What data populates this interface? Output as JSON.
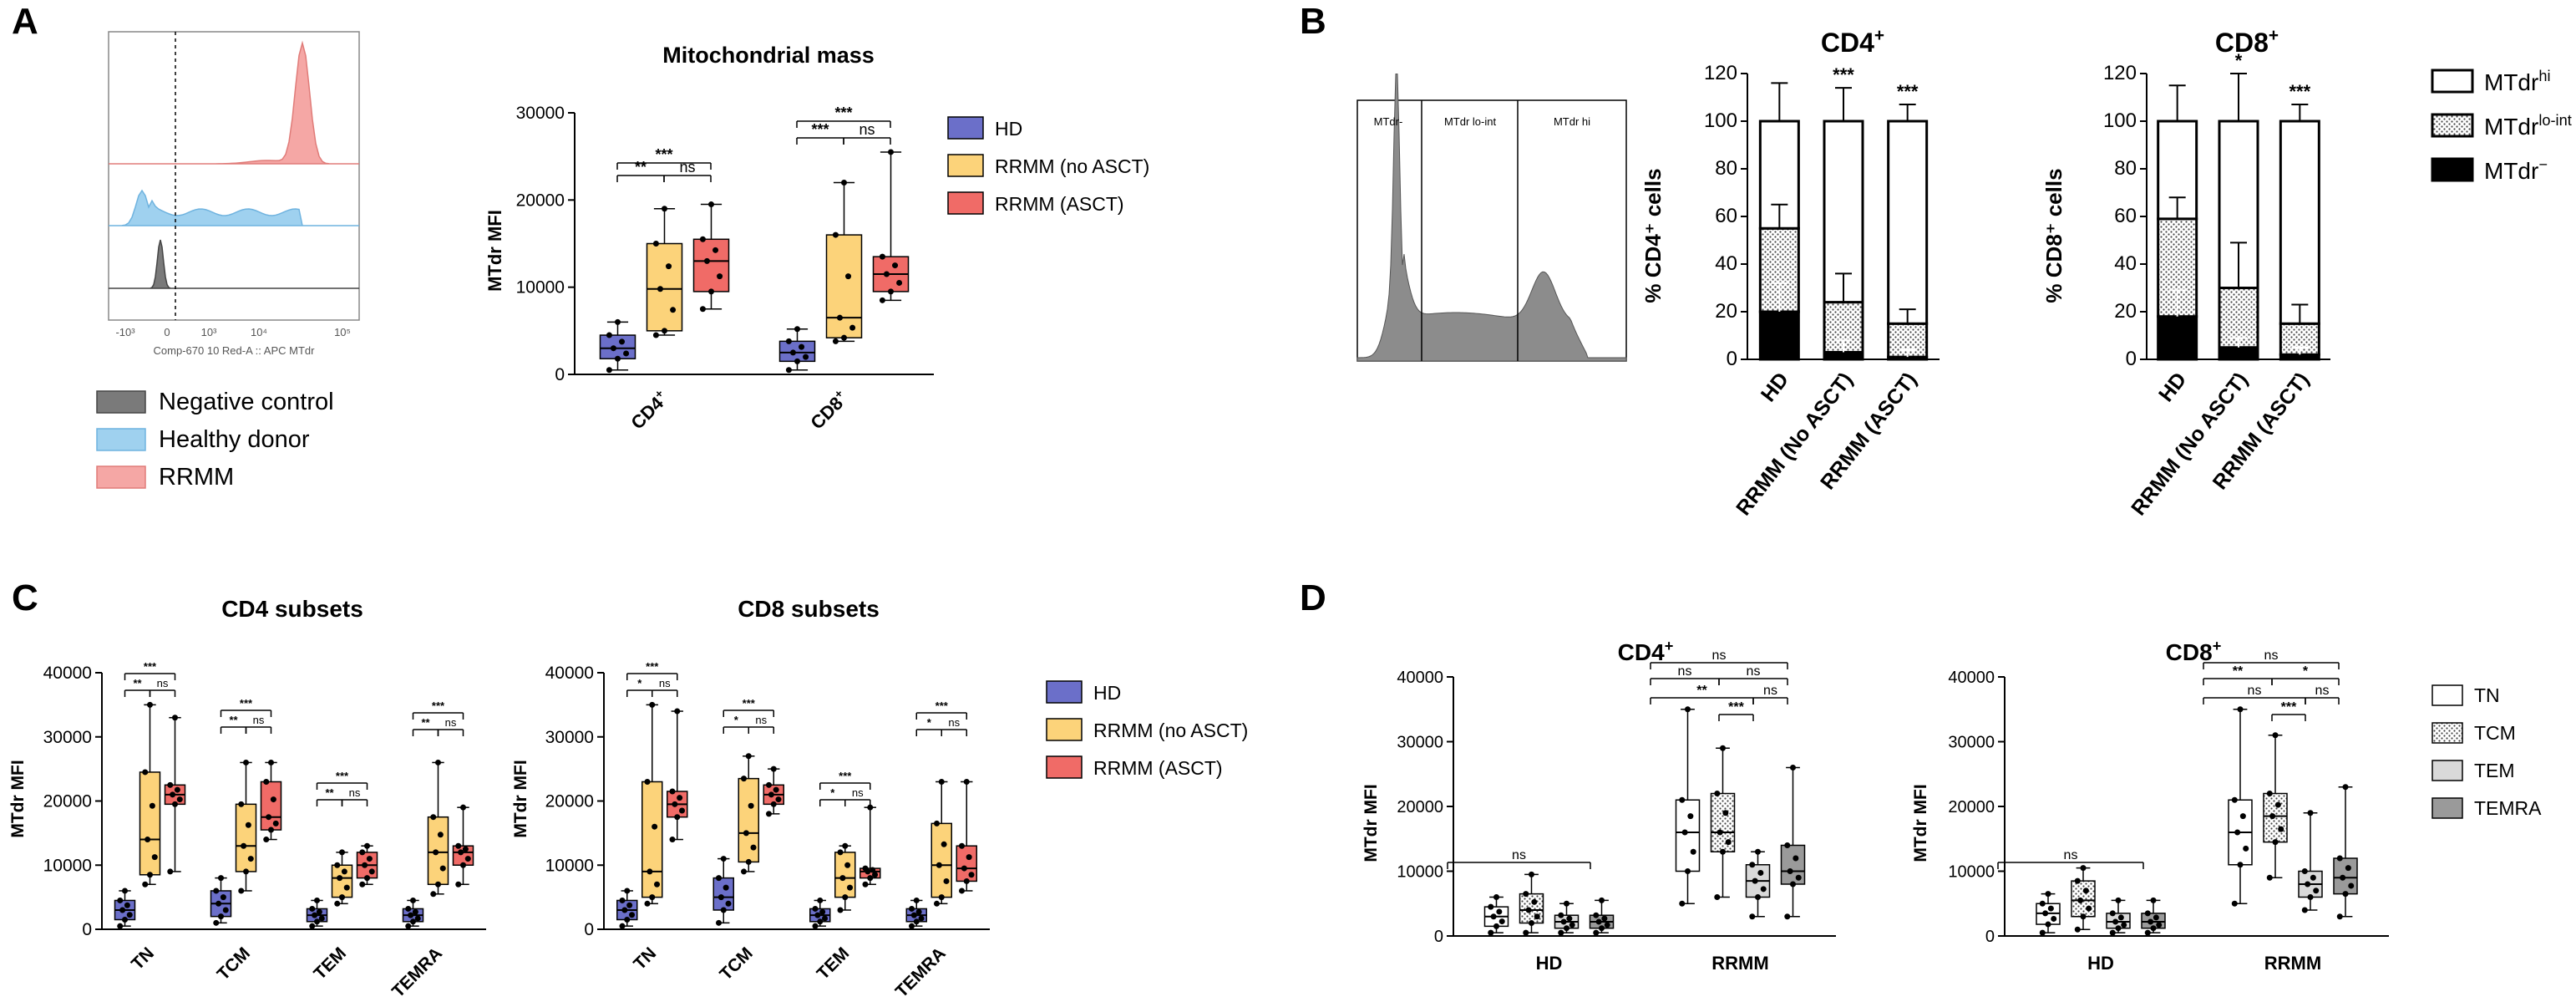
{
  "colors": {
    "hd": "#6b6fc9",
    "rrmm_no_asct": "#fcd37a",
    "rrmm_asct": "#f06b67",
    "flow_rrmm": "#f5a7a5",
    "flow_hd": "#9fd1ef",
    "flow_neg": "#7a7a7a",
    "gray_hist": "#8c8c8c",
    "tem_fill": "#d9d9d9",
    "temra_fill": "#9a9a9a"
  },
  "panel_labels": [
    "A",
    "B",
    "C",
    "D"
  ],
  "panel_a": {
    "flow": {
      "axis_label": "Comp-670 10 Red-A :: APC MTdr",
      "ticks": [
        "-10³",
        "0",
        "10³",
        "10⁴",
        "10⁵"
      ],
      "legend": [
        "Negative control",
        "Healthy donor",
        "RRMM"
      ]
    }
  },
  "panel_b": {
    "histogram": {
      "gates": [
        "MTdr-",
        "MTdr lo-int",
        "MTdr hi"
      ]
    },
    "legend": [
      "MTdr",
      "MTdr",
      "MTdr"
    ],
    "legend_superscripts": [
      "hi",
      "lo-int",
      "−"
    ]
  },
  "chart_data": [
    {
      "id": "A-box",
      "type": "box",
      "title": "Mitochondrial mass",
      "ylabel": "MTdr MFI",
      "ylim": [
        0,
        30000
      ],
      "yticks": [
        0,
        10000,
        20000,
        30000
      ],
      "categories": [
        "CD4",
        "CD8"
      ],
      "category_superscript": "+",
      "legend": [
        "HD",
        "RRMM (no ASCT)",
        "RRMM (ASCT)"
      ],
      "series": [
        {
          "name": "HD",
          "boxes": [
            {
              "min": 500,
              "q1": 1800,
              "median": 3000,
              "q3": 4500,
              "max": 6000
            },
            {
              "min": 500,
              "q1": 1500,
              "median": 2500,
              "q3": 3800,
              "max": 5200
            }
          ]
        },
        {
          "name": "RRMM (no ASCT)",
          "boxes": [
            {
              "min": 4500,
              "q1": 5000,
              "median": 9800,
              "q3": 15000,
              "max": 19000
            },
            {
              "min": 3800,
              "q1": 4200,
              "median": 6500,
              "q3": 16000,
              "max": 22000
            }
          ]
        },
        {
          "name": "RRMM (ASCT)",
          "boxes": [
            {
              "min": 7500,
              "q1": 9500,
              "median": 13000,
              "q3": 15500,
              "max": 19500
            },
            {
              "min": 8500,
              "q1": 9500,
              "median": 11500,
              "q3": 13500,
              "max": 25500
            }
          ]
        }
      ],
      "significance": [
        "***",
        "**",
        "ns",
        "***",
        "***",
        "ns"
      ]
    },
    {
      "id": "B-cd4",
      "type": "stacked_bar",
      "title": "CD4",
      "title_superscript": "+",
      "ylabel": "% CD4⁺ cells",
      "ylim": [
        0,
        120
      ],
      "yticks": [
        0,
        20,
        40,
        60,
        80,
        100,
        120
      ],
      "categories": [
        "HD",
        "RRMM (No ASCT)",
        "RRMM (ASCT)"
      ],
      "series": [
        {
          "name": "MTdr−",
          "values": [
            20,
            3,
            1
          ]
        },
        {
          "name": "MTdr lo-int",
          "values": [
            35,
            21,
            14
          ]
        },
        {
          "name": "MTdr hi",
          "values": [
            45,
            76,
            85
          ]
        }
      ],
      "error_top": [
        116,
        114,
        107
      ],
      "error_mid": [
        65,
        36,
        21
      ],
      "error_low": [
        32,
        8,
        4
      ],
      "significance": [
        "",
        "***",
        "***"
      ]
    },
    {
      "id": "B-cd8",
      "type": "stacked_bar",
      "title": "CD8",
      "title_superscript": "+",
      "ylabel": "% CD8⁺ cells",
      "ylim": [
        0,
        120
      ],
      "yticks": [
        0,
        20,
        40,
        60,
        80,
        100,
        120
      ],
      "categories": [
        "HD",
        "RRMM (No ASCT)",
        "RRMM (ASCT)"
      ],
      "series": [
        {
          "name": "MTdr−",
          "values": [
            18,
            5,
            2
          ]
        },
        {
          "name": "MTdr lo-int",
          "values": [
            41,
            25,
            13
          ]
        },
        {
          "name": "MTdr hi",
          "values": [
            41,
            70,
            85
          ]
        }
      ],
      "error_top": [
        115,
        120,
        107
      ],
      "error_mid": [
        68,
        49,
        23
      ],
      "error_low": [
        29,
        9,
        5
      ],
      "significance": [
        "",
        "*",
        "***"
      ]
    },
    {
      "id": "C-cd4",
      "type": "box",
      "title": "CD4 subsets",
      "ylabel": "MTdr MFI",
      "ylim": [
        0,
        40000
      ],
      "yticks": [
        0,
        10000,
        20000,
        30000,
        40000
      ],
      "categories": [
        "TN",
        "TCM",
        "TEM",
        "TEMRA"
      ],
      "series": [
        {
          "name": "HD",
          "boxes": [
            {
              "min": 500,
              "q1": 1500,
              "median": 3000,
              "q3": 4500,
              "max": 6000
            },
            {
              "min": 1000,
              "q1": 2000,
              "median": 4000,
              "q3": 6000,
              "max": 8000
            },
            {
              "min": 500,
              "q1": 1200,
              "median": 2200,
              "q3": 3200,
              "max": 4500
            },
            {
              "min": 500,
              "q1": 1200,
              "median": 2200,
              "q3": 3200,
              "max": 4500
            }
          ]
        },
        {
          "name": "RRMM (no ASCT)",
          "boxes": [
            {
              "min": 7000,
              "q1": 8500,
              "median": 14000,
              "q3": 24500,
              "max": 35000
            },
            {
              "min": 6000,
              "q1": 9000,
              "median": 13000,
              "q3": 19500,
              "max": 26000
            },
            {
              "min": 4000,
              "q1": 5000,
              "median": 8000,
              "q3": 10000,
              "max": 12000
            },
            {
              "min": 5500,
              "q1": 7000,
              "median": 12000,
              "q3": 17500,
              "max": 26000
            }
          ]
        },
        {
          "name": "RRMM (ASCT)",
          "boxes": [
            {
              "min": 9000,
              "q1": 19500,
              "median": 21000,
              "q3": 22500,
              "max": 33000
            },
            {
              "min": 14000,
              "q1": 15500,
              "median": 17500,
              "q3": 23000,
              "max": 26000
            },
            {
              "min": 7000,
              "q1": 8000,
              "median": 10000,
              "q3": 12000,
              "max": 13000
            },
            {
              "min": 7000,
              "q1": 10000,
              "median": 12000,
              "q3": 13000,
              "max": 19000
            }
          ]
        }
      ],
      "significance": [
        "***",
        "**",
        "ns"
      ]
    },
    {
      "id": "C-cd8",
      "type": "box",
      "title": "CD8 subsets",
      "ylabel": "MTdr MFI",
      "ylim": [
        0,
        40000
      ],
      "yticks": [
        0,
        10000,
        20000,
        30000,
        40000
      ],
      "categories": [
        "TN",
        "TCM",
        "TEM",
        "TEMRA"
      ],
      "legend": [
        "HD",
        "RRMM (no ASCT)",
        "RRMM (ASCT)"
      ],
      "series": [
        {
          "name": "HD",
          "boxes": [
            {
              "min": 500,
              "q1": 1500,
              "median": 3000,
              "q3": 4500,
              "max": 6000
            },
            {
              "min": 1000,
              "q1": 3000,
              "median": 5000,
              "q3": 8000,
              "max": 11000
            },
            {
              "min": 500,
              "q1": 1200,
              "median": 2200,
              "q3": 3200,
              "max": 4500
            },
            {
              "min": 500,
              "q1": 1200,
              "median": 2200,
              "q3": 3200,
              "max": 4500
            }
          ]
        },
        {
          "name": "RRMM (no ASCT)",
          "boxes": [
            {
              "min": 4000,
              "q1": 5000,
              "median": 9000,
              "q3": 23000,
              "max": 35000
            },
            {
              "min": 9000,
              "q1": 10500,
              "median": 15000,
              "q3": 23500,
              "max": 27000
            },
            {
              "min": 3000,
              "q1": 5000,
              "median": 8000,
              "q3": 12000,
              "max": 13000
            },
            {
              "min": 4000,
              "q1": 5000,
              "median": 10000,
              "q3": 16500,
              "max": 23000
            }
          ]
        },
        {
          "name": "RRMM (ASCT)",
          "boxes": [
            {
              "min": 14000,
              "q1": 17500,
              "median": 19500,
              "q3": 21500,
              "max": 34000
            },
            {
              "min": 18000,
              "q1": 19500,
              "median": 21000,
              "q3": 22500,
              "max": 25000
            },
            {
              "min": 7000,
              "q1": 8000,
              "median": 9000,
              "q3": 9500,
              "max": 19000
            },
            {
              "min": 6000,
              "q1": 7500,
              "median": 9500,
              "q3": 13000,
              "max": 23000
            }
          ]
        }
      ],
      "significance": [
        "***",
        "*",
        "ns"
      ]
    },
    {
      "id": "D-cd4",
      "type": "box",
      "title": "CD4",
      "title_superscript": "+",
      "ylabel": "MTdr MFI",
      "ylim": [
        0,
        40000
      ],
      "yticks": [
        0,
        10000,
        20000,
        30000,
        40000
      ],
      "categories": [
        "HD",
        "RRMM"
      ],
      "series": [
        {
          "name": "TN",
          "boxes": [
            {
              "min": 500,
              "q1": 1500,
              "median": 3000,
              "q3": 4500,
              "max": 6000
            },
            {
              "min": 5000,
              "q1": 10000,
              "median": 16000,
              "q3": 21000,
              "max": 35000
            }
          ]
        },
        {
          "name": "TCM",
          "boxes": [
            {
              "min": 500,
              "q1": 2000,
              "median": 4000,
              "q3": 6500,
              "max": 9500
            },
            {
              "min": 6000,
              "q1": 13000,
              "median": 16000,
              "q3": 22000,
              "max": 29000
            }
          ]
        },
        {
          "name": "TEM",
          "boxes": [
            {
              "min": 500,
              "q1": 1200,
              "median": 2200,
              "q3": 3200,
              "max": 5000
            },
            {
              "min": 3000,
              "q1": 6000,
              "median": 8500,
              "q3": 11000,
              "max": 13000
            }
          ]
        },
        {
          "name": "TEMRA",
          "boxes": [
            {
              "min": 500,
              "q1": 1200,
              "median": 2200,
              "q3": 3200,
              "max": 5500
            },
            {
              "min": 3000,
              "q1": 8000,
              "median": 10000,
              "q3": 14000,
              "max": 26000
            }
          ]
        }
      ],
      "significance": [
        "ns",
        "ns",
        "ns",
        "ns",
        "**",
        "***",
        "ns"
      ]
    },
    {
      "id": "D-cd8",
      "type": "box",
      "title": "CD8",
      "title_superscript": "+",
      "ylabel": "MTdr MFI",
      "ylim": [
        0,
        40000
      ],
      "yticks": [
        0,
        10000,
        20000,
        30000,
        40000
      ],
      "categories": [
        "HD",
        "RRMM"
      ],
      "legend": [
        "TN",
        "TCM",
        "TEM",
        "TEMRA"
      ],
      "series": [
        {
          "name": "TN",
          "boxes": [
            {
              "min": 500,
              "q1": 1800,
              "median": 3500,
              "q3": 5000,
              "max": 6500
            },
            {
              "min": 5000,
              "q1": 11000,
              "median": 16000,
              "q3": 21000,
              "max": 35000
            }
          ]
        },
        {
          "name": "TCM",
          "boxes": [
            {
              "min": 1000,
              "q1": 3000,
              "median": 5500,
              "q3": 8500,
              "max": 10500
            },
            {
              "min": 9000,
              "q1": 14500,
              "median": 18500,
              "q3": 22000,
              "max": 31000
            }
          ]
        },
        {
          "name": "TEM",
          "boxes": [
            {
              "min": 500,
              "q1": 1200,
              "median": 2200,
              "q3": 3500,
              "max": 5500
            },
            {
              "min": 4000,
              "q1": 6000,
              "median": 8000,
              "q3": 10000,
              "max": 19000
            }
          ]
        },
        {
          "name": "TEMRA",
          "boxes": [
            {
              "min": 500,
              "q1": 1200,
              "median": 2200,
              "q3": 3500,
              "max": 5500
            },
            {
              "min": 3000,
              "q1": 6500,
              "median": 9000,
              "q3": 12000,
              "max": 23000
            }
          ]
        }
      ],
      "significance": [
        "ns",
        "ns",
        "**",
        "*",
        "ns",
        "***",
        "ns"
      ]
    }
  ]
}
